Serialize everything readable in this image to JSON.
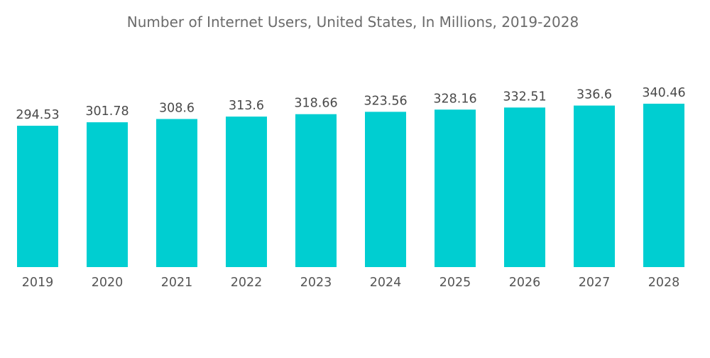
{
  "chart_data": {
    "type": "bar",
    "title": "Number of Internet Users, United States, In Millions, 2019-2028",
    "xlabel": "",
    "ylabel": "",
    "categories": [
      "2019",
      "2020",
      "2021",
      "2022",
      "2023",
      "2024",
      "2025",
      "2026",
      "2027",
      "2028"
    ],
    "values": [
      294.53,
      301.78,
      308.6,
      313.6,
      318.66,
      323.56,
      328.16,
      332.51,
      336.6,
      340.46
    ],
    "value_labels": [
      "294.53",
      "301.78",
      "308.6",
      "313.6",
      "318.66",
      "323.56",
      "328.16",
      "332.51",
      "336.6",
      "340.46"
    ],
    "ylim": [
      0,
      340.46
    ],
    "grid": false,
    "legend": "none",
    "bar_color": "#00ced1"
  }
}
